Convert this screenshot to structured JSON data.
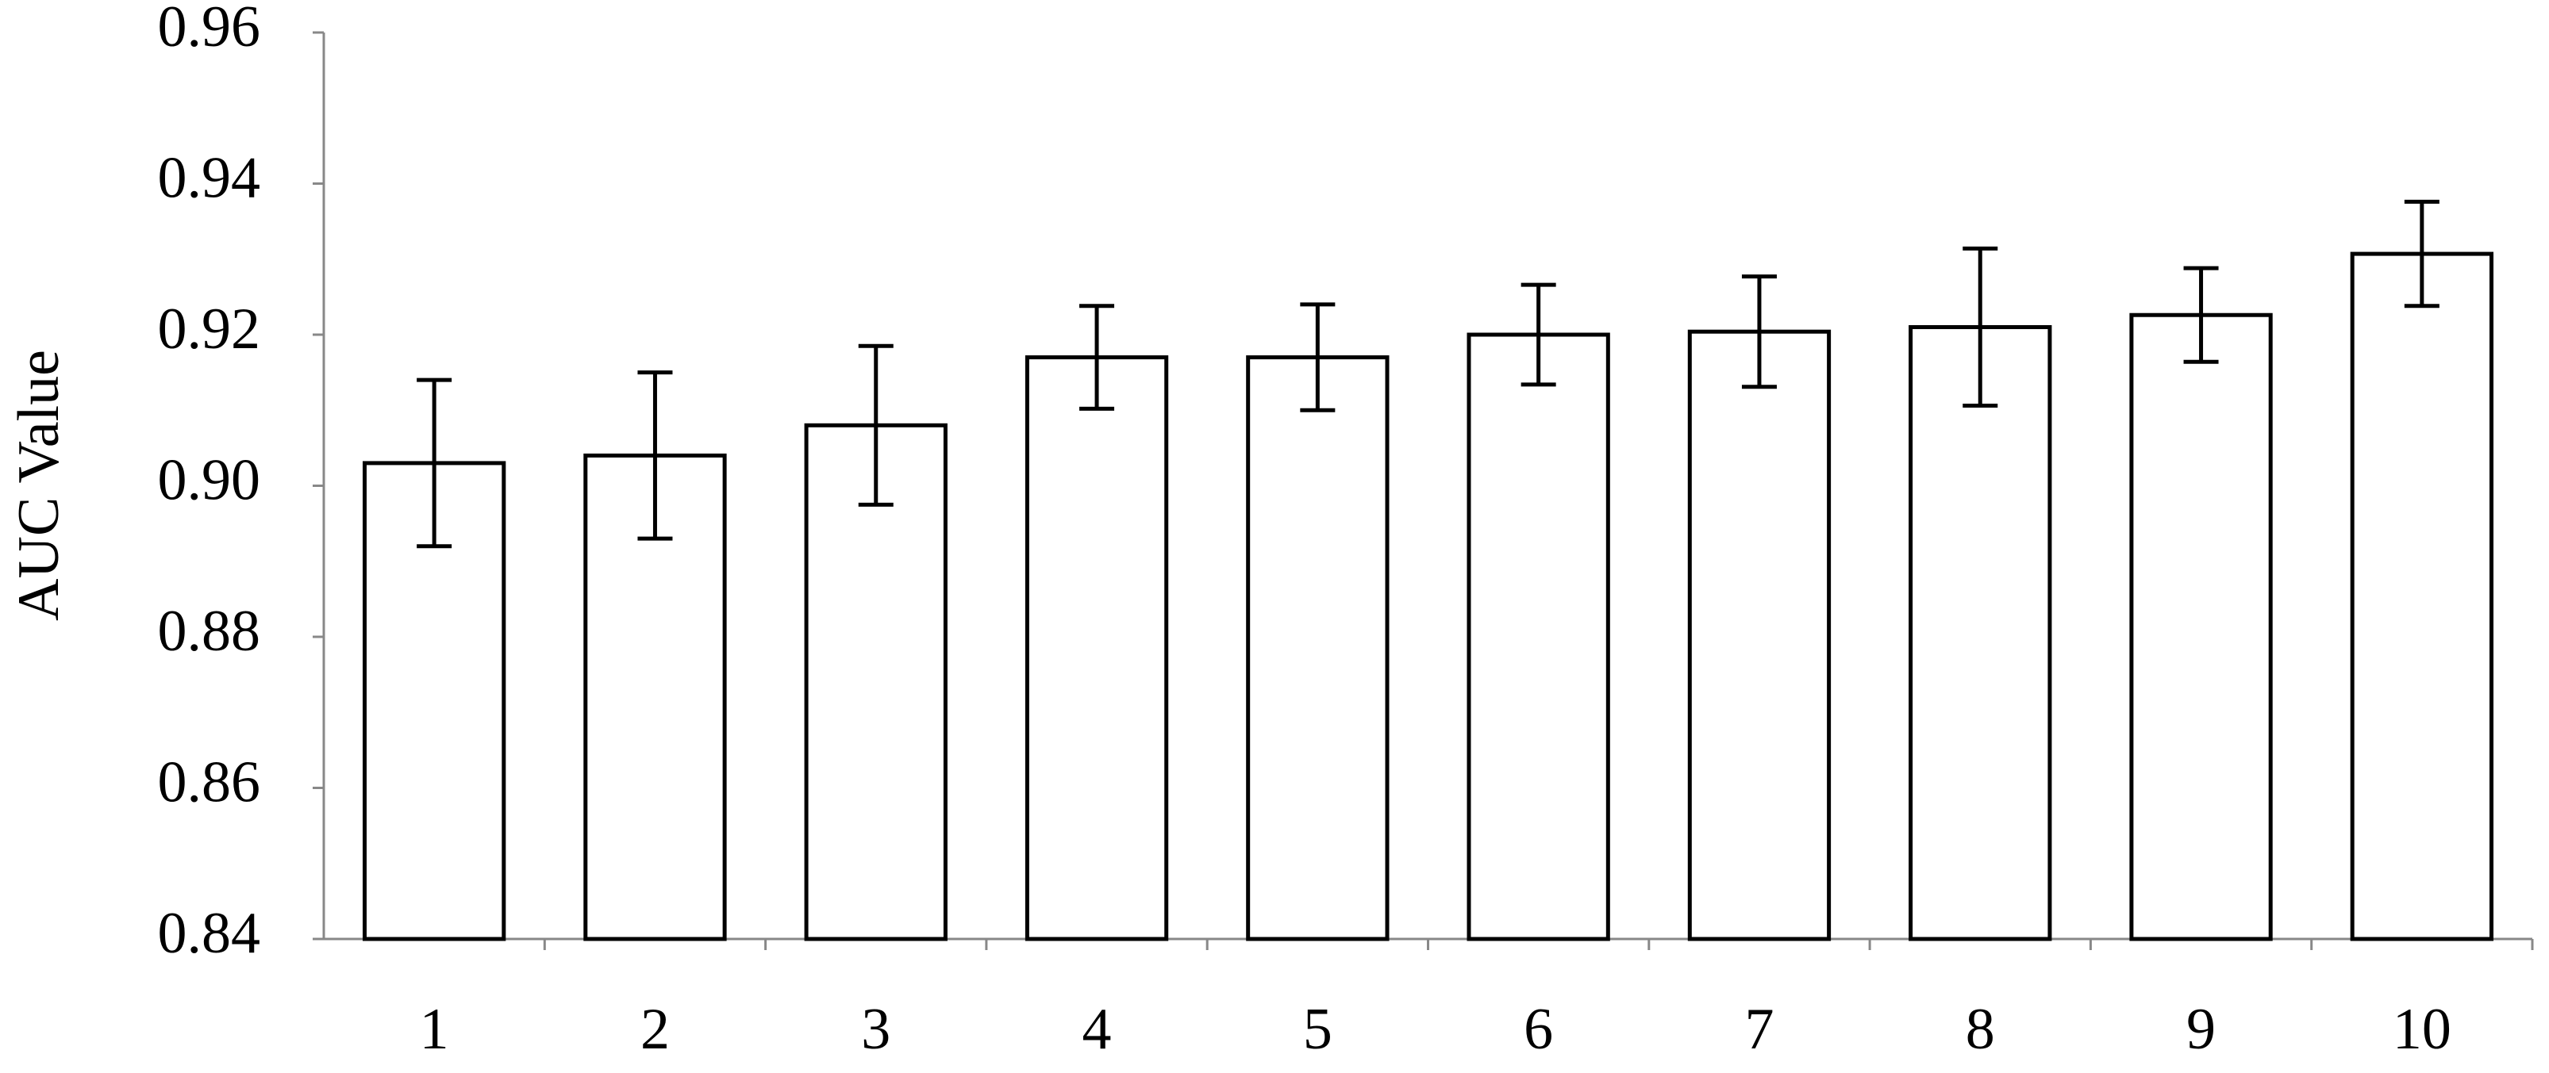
{
  "chart_data": {
    "type": "bar",
    "ylabel": "AUC Value",
    "categories": [
      "1",
      "2",
      "3",
      "4",
      "5",
      "6",
      "7",
      "8",
      "9",
      "10"
    ],
    "values": [
      0.903,
      0.904,
      0.908,
      0.917,
      0.917,
      0.92,
      0.9204,
      0.921,
      0.9226,
      0.9307
    ],
    "errors": [
      0.011,
      0.011,
      0.0105,
      0.0068,
      0.007,
      0.0066,
      0.0073,
      0.0104,
      0.0062,
      0.0069
    ],
    "color": "#ffffff",
    "ylim": [
      0.84,
      0.96
    ],
    "yticks": [
      0.84,
      0.86,
      0.88,
      {
        "value": 0.9,
        "label": "0.90"
      },
      0.92,
      0.94,
      0.96
    ],
    "grid": false
  }
}
